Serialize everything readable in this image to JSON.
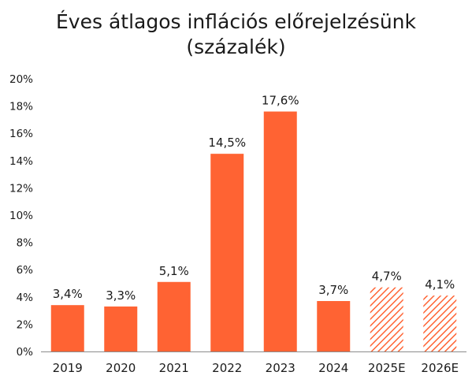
{
  "chart_data": {
    "type": "bar",
    "title": "Éves átlagos inflációs előrejelzésünk",
    "subtitle": "(százalék)",
    "categories": [
      "2019",
      "2020",
      "2021",
      "2022",
      "2023",
      "2024",
      "2025E",
      "2026E"
    ],
    "values": [
      3.4,
      3.3,
      5.1,
      14.5,
      17.6,
      3.7,
      4.7,
      4.1
    ],
    "data_labels": [
      "3,4%",
      "3,3%",
      "5,1%",
      "14,5%",
      "17,6%",
      "3,7%",
      "4,7%",
      "4,1%"
    ],
    "forecast": [
      false,
      false,
      false,
      false,
      false,
      false,
      true,
      true
    ],
    "y_ticks": [
      "0%",
      "2%",
      "4%",
      "6%",
      "8%",
      "10%",
      "12%",
      "14%",
      "16%",
      "18%",
      "20%"
    ],
    "ylim": [
      0,
      20
    ],
    "xlabel": "",
    "ylabel": "",
    "grid": false,
    "colors": {
      "bar": "#ff6333",
      "axis": "#8c8c8c"
    }
  }
}
